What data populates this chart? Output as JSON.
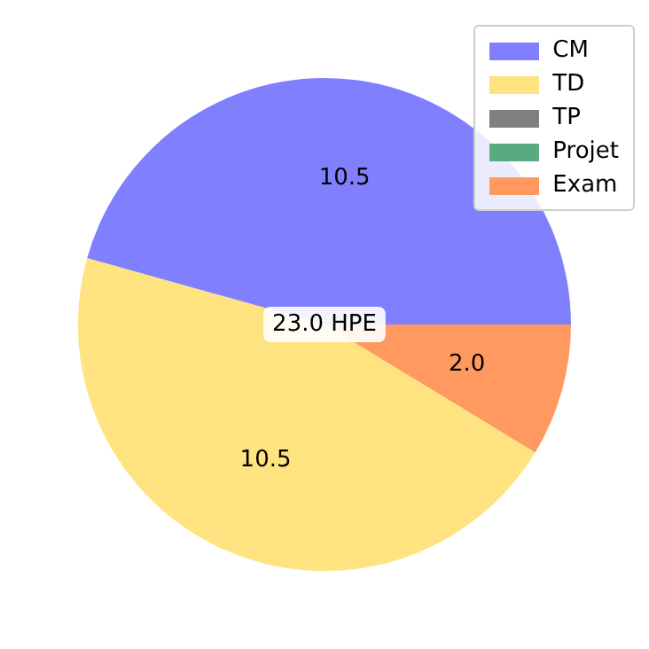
{
  "chart_data": {
    "type": "pie",
    "categories": [
      "CM",
      "TD",
      "TP",
      "Projet",
      "Exam"
    ],
    "values": [
      10.5,
      10.5,
      0,
      0,
      2.0
    ],
    "value_labels": [
      "10.5",
      "10.5",
      null,
      null,
      "2.0"
    ],
    "colors": [
      "#8080ff",
      "#ffe380",
      "#808080",
      "#5aaa80",
      "#ff9960"
    ],
    "annotations": [
      "23.0 HPE"
    ],
    "legend": "top right"
  }
}
